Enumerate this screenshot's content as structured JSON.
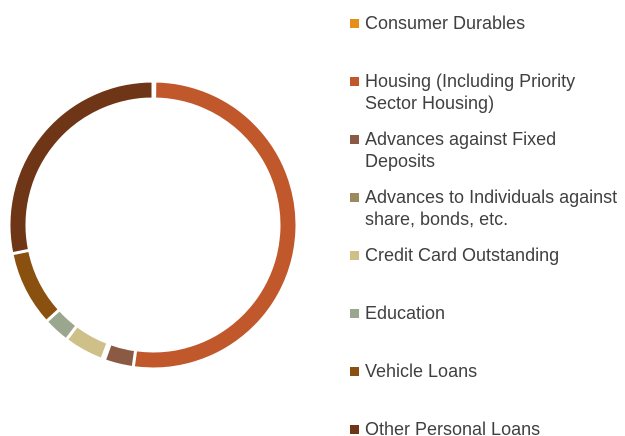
{
  "chart_data": {
    "type": "donut",
    "categories": [
      "Consumer Durables",
      "Housing (Including Priority Sector Housing)",
      "Advances against Fixed Deposits",
      "Advances to Individuals against share, bonds, etc.",
      "Credit Card Outstanding",
      "Education",
      "Vehicle Loans",
      "Other Personal Loans"
    ],
    "values": [
      0.2,
      52,
      3.3,
      0.3,
      4.5,
      3,
      8.5,
      28.2
    ],
    "colors": [
      "#e58e1a",
      "#c0582c",
      "#8b5a45",
      "#9c8a5e",
      "#cfc08a",
      "#9aa68e",
      "#8a5010",
      "#6e3517"
    ],
    "legend": "right"
  }
}
